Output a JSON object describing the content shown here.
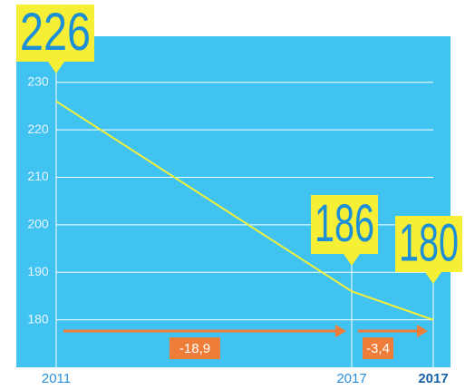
{
  "chart_data": {
    "type": "line",
    "categories": [
      "2011",
      "2017",
      "2017"
    ],
    "values": [
      226,
      186,
      180
    ],
    "color": "#f4ee3c",
    "ylim": [
      170,
      233
    ],
    "yticks": [
      180,
      190,
      200,
      210,
      220,
      230
    ],
    "grid": true,
    "annotations": [
      {
        "text": "-18,9"
      },
      {
        "text": "-3,4"
      }
    ]
  }
}
